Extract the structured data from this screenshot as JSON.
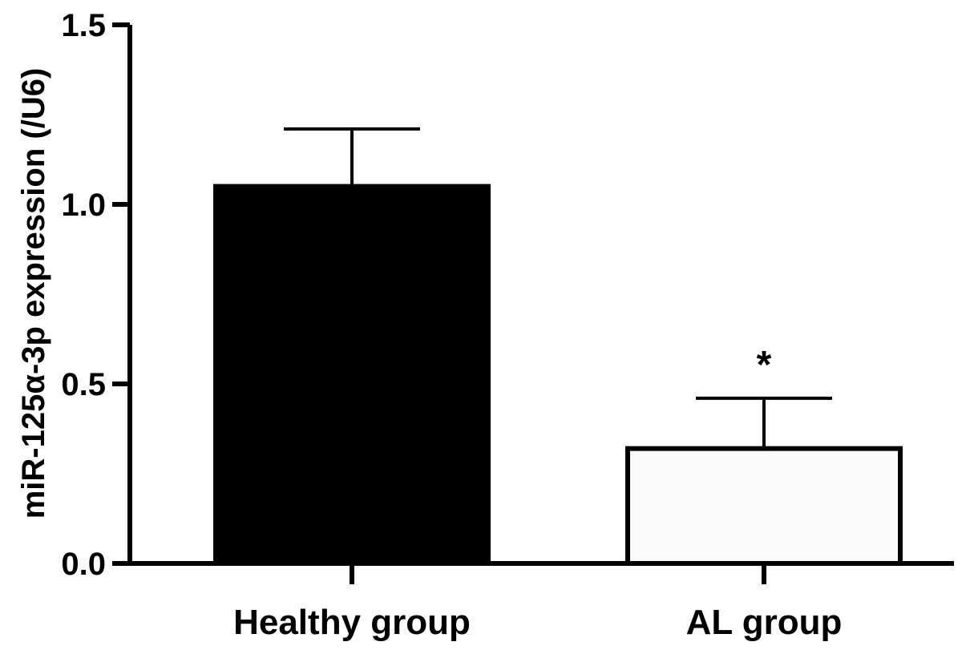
{
  "chart_data": {
    "type": "bar",
    "title": "",
    "xlabel": "",
    "ylabel": "miR-125α-3p expression (/U6)",
    "ylim": [
      0,
      1.5
    ],
    "yticks": [
      "0.0",
      "0.5",
      "1.0",
      "1.5"
    ],
    "categories": [
      "Healthy group",
      "AL group"
    ],
    "values": [
      1.05,
      0.32
    ],
    "error_upper": [
      0.16,
      0.14
    ],
    "bar_colors": [
      "#000000",
      "#fafafa"
    ],
    "annotations": [
      "",
      "*"
    ],
    "grid": false,
    "legend": "none"
  }
}
